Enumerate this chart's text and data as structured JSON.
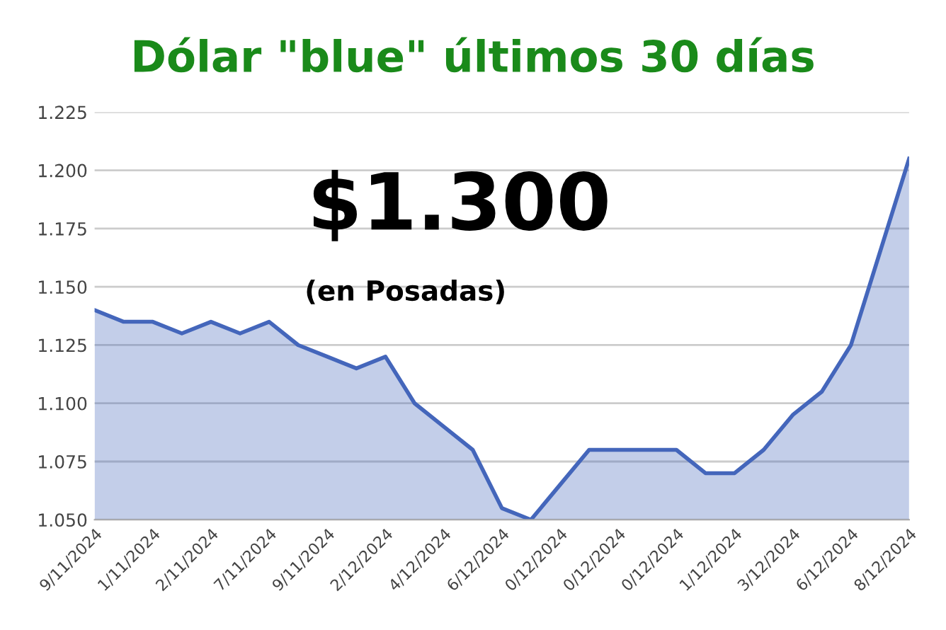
{
  "chart_data": {
    "type": "area",
    "title": "Dólar \"blue\" últimos 30 días",
    "categories": [
      "9/11/2024",
      null,
      "1/11/2024",
      null,
      "2/11/2024",
      null,
      "7/11/2024",
      null,
      "9/11/2024",
      null,
      "2/12/2024",
      null,
      "4/12/2024",
      null,
      "6/12/2024",
      null,
      "0/12/2024",
      null,
      "0/12/2024",
      null,
      "0/12/2024",
      null,
      "1/12/2024",
      null,
      "3/12/2024",
      null,
      "6/12/2024",
      null,
      "8/12/2024"
    ],
    "series": [
      {
        "color": "#4466bb",
        "values": [
          1140,
          1135,
          1135,
          1130,
          1135,
          1130,
          1135,
          1125,
          1120,
          1115,
          1120,
          1100,
          1090,
          1080,
          1055,
          1050,
          1065,
          1080,
          1080,
          1080,
          1080,
          1070,
          1070,
          1080,
          1095,
          1105,
          1125,
          1165,
          1205
        ]
      }
    ],
    "ylim": [
      1050,
      1225
    ],
    "yticks": [
      {
        "value": 1050,
        "label": "1.050"
      },
      {
        "value": 1075,
        "label": "1.075"
      },
      {
        "value": 1100,
        "label": "1.100"
      },
      {
        "value": 1125,
        "label": "1.125"
      },
      {
        "value": 1150,
        "label": "1.150"
      },
      {
        "value": 1175,
        "label": "1.175"
      },
      {
        "value": 1200,
        "label": "1.200"
      },
      {
        "value": 1225,
        "label": "1.225"
      }
    ],
    "grid": "y",
    "annotations": [
      "$1.300",
      "(en Posadas)"
    ]
  }
}
